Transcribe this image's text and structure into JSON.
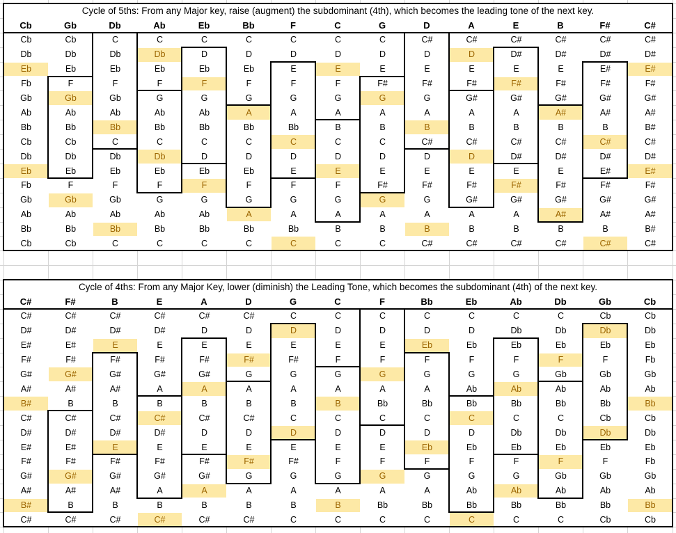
{
  "table_top": {
    "title": "Cycle of 5ths: From any Major key, raise (augment) the subdominant (4th), which becomes the leading tone of the next key.",
    "headers": [
      "Cb",
      "Gb",
      "Db",
      "Ab",
      "Eb",
      "Bb",
      "F",
      "C",
      "G",
      "D",
      "A",
      "E",
      "B",
      "F#",
      "C#"
    ],
    "columns": [
      [
        "Cb",
        "Db",
        "Eb",
        "Fb",
        "Gb",
        "Ab",
        "Bb",
        "Cb",
        "Db",
        "Eb",
        "Fb",
        "Gb",
        "Ab",
        "Bb",
        "Cb"
      ],
      [
        "Cb",
        "Db",
        "Eb",
        "F",
        "Gb",
        "Ab",
        "Bb",
        "Cb",
        "Db",
        "Eb",
        "F",
        "Gb",
        "Ab",
        "Bb",
        "Cb"
      ],
      [
        "C",
        "Db",
        "Eb",
        "F",
        "Gb",
        "Ab",
        "Bb",
        "C",
        "Db",
        "Eb",
        "F",
        "Gb",
        "Ab",
        "Bb",
        "C"
      ],
      [
        "C",
        "Db",
        "Eb",
        "F",
        "G",
        "Ab",
        "Bb",
        "C",
        "Db",
        "Eb",
        "F",
        "G",
        "Ab",
        "Bb",
        "C"
      ],
      [
        "C",
        "D",
        "Eb",
        "F",
        "G",
        "Ab",
        "Bb",
        "C",
        "D",
        "Eb",
        "F",
        "G",
        "Ab",
        "Bb",
        "C"
      ],
      [
        "C",
        "D",
        "Eb",
        "F",
        "G",
        "A",
        "Bb",
        "C",
        "D",
        "Eb",
        "F",
        "G",
        "A",
        "Bb",
        "C"
      ],
      [
        "C",
        "D",
        "E",
        "F",
        "G",
        "A",
        "Bb",
        "C",
        "D",
        "E",
        "F",
        "G",
        "A",
        "Bb",
        "C"
      ],
      [
        "C",
        "D",
        "E",
        "F",
        "G",
        "A",
        "B",
        "C",
        "D",
        "E",
        "F",
        "G",
        "A",
        "B",
        "C"
      ],
      [
        "C",
        "D",
        "E",
        "F#",
        "G",
        "A",
        "B",
        "C",
        "D",
        "E",
        "F#",
        "G",
        "A",
        "B",
        "C"
      ],
      [
        "C#",
        "D",
        "E",
        "F#",
        "G",
        "A",
        "B",
        "C#",
        "D",
        "E",
        "F#",
        "G",
        "A",
        "B",
        "C#"
      ],
      [
        "C#",
        "D",
        "E",
        "F#",
        "G#",
        "A",
        "B",
        "C#",
        "D",
        "E",
        "F#",
        "G#",
        "A",
        "B",
        "C#"
      ],
      [
        "C#",
        "D#",
        "E",
        "F#",
        "G#",
        "A",
        "B",
        "C#",
        "D#",
        "E",
        "F#",
        "G#",
        "A",
        "B",
        "C#"
      ],
      [
        "C#",
        "D#",
        "E",
        "F#",
        "G#",
        "A#",
        "B",
        "C#",
        "D#",
        "E",
        "F#",
        "G#",
        "A#",
        "B",
        "C#"
      ],
      [
        "C#",
        "D#",
        "E#",
        "F#",
        "G#",
        "A#",
        "B",
        "C#",
        "D#",
        "E#",
        "F#",
        "G#",
        "A#",
        "B",
        "C#"
      ],
      [
        "C#",
        "D#",
        "E#",
        "F#",
        "G#",
        "A#",
        "B#",
        "C#",
        "D#",
        "E#",
        "F#",
        "G#",
        "A#",
        "B#",
        "C#"
      ]
    ],
    "highlights": [
      [
        3,
        1
      ],
      [
        10,
        1
      ],
      [
        0,
        2
      ],
      [
        7,
        2
      ],
      [
        14,
        2
      ],
      [
        4,
        3
      ],
      [
        11,
        3
      ],
      [
        1,
        4
      ],
      [
        8,
        4
      ],
      [
        5,
        5
      ],
      [
        12,
        5
      ],
      [
        2,
        6
      ],
      [
        9,
        6
      ],
      [
        6,
        7
      ],
      [
        13,
        7
      ],
      [
        3,
        8
      ],
      [
        10,
        8
      ],
      [
        0,
        9
      ],
      [
        7,
        9
      ],
      [
        14,
        9
      ],
      [
        4,
        10
      ],
      [
        11,
        10
      ],
      [
        1,
        11
      ],
      [
        8,
        11
      ],
      [
        5,
        12
      ],
      [
        12,
        12
      ],
      [
        2,
        13
      ],
      [
        9,
        13
      ],
      [
        6,
        14
      ],
      [
        13,
        14
      ]
    ],
    "boxes": [
      [
        3,
        9
      ],
      [
        0,
        7
      ],
      [
        4,
        10
      ],
      [
        1,
        8
      ],
      [
        5,
        11
      ],
      [
        2,
        9
      ],
      [
        6,
        12
      ],
      [
        3,
        10
      ],
      [
        0,
        7
      ],
      [
        4,
        11
      ],
      [
        1,
        8
      ],
      [
        5,
        12
      ],
      [
        2,
        9
      ]
    ]
  },
  "table_bottom": {
    "title": "Cycle of 4ths: From any Major Key, lower (diminish) the Leading Tone, which becomes the subdominant (4th) of the next key.",
    "headers": [
      "C#",
      "F#",
      "B",
      "E",
      "A",
      "D",
      "G",
      "C",
      "F",
      "Bb",
      "Eb",
      "Ab",
      "Db",
      "Gb",
      "Cb"
    ],
    "columns": [
      [
        "C#",
        "D#",
        "E#",
        "F#",
        "G#",
        "A#",
        "B#",
        "C#",
        "D#",
        "E#",
        "F#",
        "G#",
        "A#",
        "B#",
        "C#"
      ],
      [
        "C#",
        "D#",
        "E#",
        "F#",
        "G#",
        "A#",
        "B",
        "C#",
        "D#",
        "E#",
        "F#",
        "G#",
        "A#",
        "B",
        "C#"
      ],
      [
        "C#",
        "D#",
        "E",
        "F#",
        "G#",
        "A#",
        "B",
        "C#",
        "D#",
        "E",
        "F#",
        "G#",
        "A#",
        "B",
        "C#"
      ],
      [
        "C#",
        "D#",
        "E",
        "F#",
        "G#",
        "A",
        "B",
        "C#",
        "D#",
        "E",
        "F#",
        "G#",
        "A",
        "B",
        "C#"
      ],
      [
        "C#",
        "D",
        "E",
        "F#",
        "G#",
        "A",
        "B",
        "C#",
        "D",
        "E",
        "F#",
        "G#",
        "A",
        "B",
        "C#"
      ],
      [
        "C#",
        "D",
        "E",
        "F#",
        "G",
        "A",
        "B",
        "C#",
        "D",
        "E",
        "F#",
        "G",
        "A",
        "B",
        "C#"
      ],
      [
        "C",
        "D",
        "E",
        "F#",
        "G",
        "A",
        "B",
        "C",
        "D",
        "E",
        "F#",
        "G",
        "A",
        "B",
        "C"
      ],
      [
        "C",
        "D",
        "E",
        "F",
        "G",
        "A",
        "B",
        "C",
        "D",
        "E",
        "F",
        "G",
        "A",
        "B",
        "C"
      ],
      [
        "C",
        "D",
        "E",
        "F",
        "G",
        "A",
        "Bb",
        "C",
        "D",
        "E",
        "F",
        "G",
        "A",
        "Bb",
        "C"
      ],
      [
        "C",
        "D",
        "Eb",
        "F",
        "G",
        "A",
        "Bb",
        "C",
        "D",
        "Eb",
        "F",
        "G",
        "A",
        "Bb",
        "C"
      ],
      [
        "C",
        "D",
        "Eb",
        "F",
        "G",
        "Ab",
        "Bb",
        "C",
        "D",
        "Eb",
        "F",
        "G",
        "Ab",
        "Bb",
        "C"
      ],
      [
        "C",
        "Db",
        "Eb",
        "F",
        "G",
        "Ab",
        "Bb",
        "C",
        "Db",
        "Eb",
        "F",
        "G",
        "Ab",
        "Bb",
        "C"
      ],
      [
        "C",
        "Db",
        "Eb",
        "F",
        "Gb",
        "Ab",
        "Bb",
        "C",
        "Db",
        "Eb",
        "F",
        "Gb",
        "Ab",
        "Bb",
        "C"
      ],
      [
        "Cb",
        "Db",
        "Eb",
        "F",
        "Gb",
        "Ab",
        "Bb",
        "Cb",
        "Db",
        "Eb",
        "F",
        "Gb",
        "Ab",
        "Bb",
        "Cb"
      ],
      [
        "Cb",
        "Db",
        "Eb",
        "Fb",
        "Gb",
        "Ab",
        "Bb",
        "Cb",
        "Db",
        "Eb",
        "Fb",
        "Gb",
        "Ab",
        "Bb",
        "Cb"
      ]
    ],
    "highlights": [
      [
        6,
        1
      ],
      [
        13,
        1
      ],
      [
        2,
        2
      ],
      [
        9,
        2
      ],
      [
        5,
        3
      ],
      [
        12,
        3
      ],
      [
        1,
        4
      ],
      [
        8,
        4
      ],
      [
        4,
        5
      ],
      [
        11,
        5
      ],
      [
        0,
        6
      ],
      [
        7,
        6
      ],
      [
        14,
        6
      ],
      [
        3,
        7
      ],
      [
        10,
        7
      ],
      [
        6,
        8
      ],
      [
        13,
        8
      ],
      [
        2,
        9
      ],
      [
        9,
        9
      ],
      [
        5,
        10
      ],
      [
        12,
        10
      ],
      [
        1,
        11
      ],
      [
        8,
        11
      ],
      [
        4,
        12
      ],
      [
        11,
        12
      ],
      [
        0,
        13
      ],
      [
        7,
        13
      ],
      [
        14,
        13
      ],
      [
        3,
        14
      ],
      [
        10,
        14
      ]
    ],
    "boxes": [
      [
        7,
        13
      ],
      [
        3,
        9
      ],
      [
        6,
        12
      ],
      [
        2,
        9
      ],
      [
        5,
        11
      ],
      [
        1,
        8
      ],
      [
        4,
        11
      ],
      [
        0,
        7
      ],
      [
        3,
        10
      ],
      [
        6,
        13
      ],
      [
        2,
        9
      ],
      [
        5,
        12
      ],
      [
        1,
        8
      ]
    ]
  }
}
